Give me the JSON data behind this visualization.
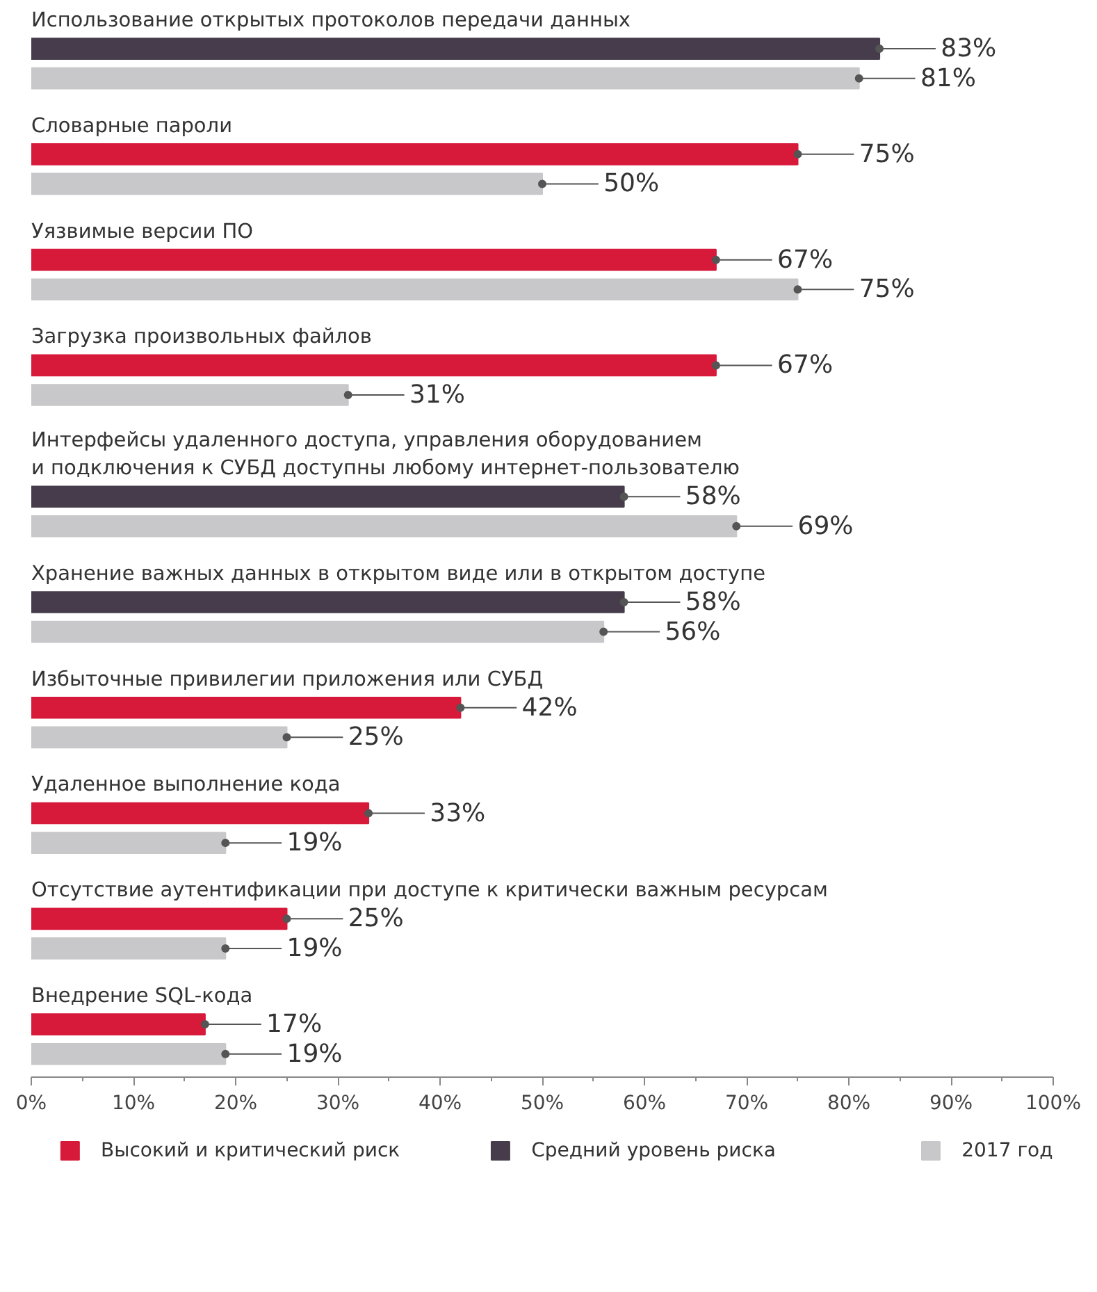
{
  "chart_data": {
    "type": "bar",
    "orientation": "horizontal",
    "categories": [
      "Использование открытых протоколов передачи данных",
      "Словарные пароли",
      "Уязвимые версии ПО",
      "Загрузка произвольных файлов",
      "Интерфейсы удаленного доступа, управления оборудованием\nи подключения к СУБД доступны любому интернет-пользователю",
      "Хранение важных данных в открытом виде или в открытом доступе",
      "Избыточные привилегии приложения или СУБД",
      "Удаленное выполнение кода",
      "Отсутствие аутентификации при доступе к критически важным ресурсам",
      "Внедрение SQL-кода"
    ],
    "series": [
      {
        "name": "Высокий и критический риск",
        "color": "#d7193a",
        "values": [
          null,
          75,
          67,
          67,
          null,
          null,
          42,
          33,
          25,
          17
        ],
        "value_labels": [
          null,
          "75%",
          "67%",
          "67%",
          null,
          null,
          "42%",
          "33%",
          "25%",
          "17%"
        ]
      },
      {
        "name": "Средний уровень риска",
        "color": "#463c4b",
        "values": [
          83,
          null,
          null,
          null,
          58,
          58,
          null,
          null,
          null,
          null
        ],
        "value_labels": [
          "83%",
          null,
          null,
          null,
          "58%",
          "58%",
          null,
          null,
          null,
          null
        ]
      },
      {
        "name": "2017 год",
        "color": "#c8c7c9",
        "values": [
          81,
          50,
          75,
          31,
          69,
          56,
          25,
          19,
          19,
          19
        ],
        "value_labels": [
          "81%",
          "50%",
          "75%",
          "31%",
          "69%",
          "56%",
          "25%",
          "19%",
          "19%",
          "19%"
        ]
      }
    ],
    "xlim": [
      0,
      100
    ],
    "xticks": [
      {
        "value": 0,
        "label": "0%"
      },
      {
        "value": 10,
        "label": "10%"
      },
      {
        "value": 20,
        "label": "20%"
      },
      {
        "value": 30,
        "label": "30%"
      },
      {
        "value": 40,
        "label": "40%"
      },
      {
        "value": 50,
        "label": "50%"
      },
      {
        "value": 60,
        "label": "60%"
      },
      {
        "value": 70,
        "label": "70%"
      },
      {
        "value": 80,
        "label": "80%"
      },
      {
        "value": 90,
        "label": "90%"
      },
      {
        "value": 100,
        "label": "100%"
      }
    ],
    "grid": false,
    "legend": "bottom"
  }
}
